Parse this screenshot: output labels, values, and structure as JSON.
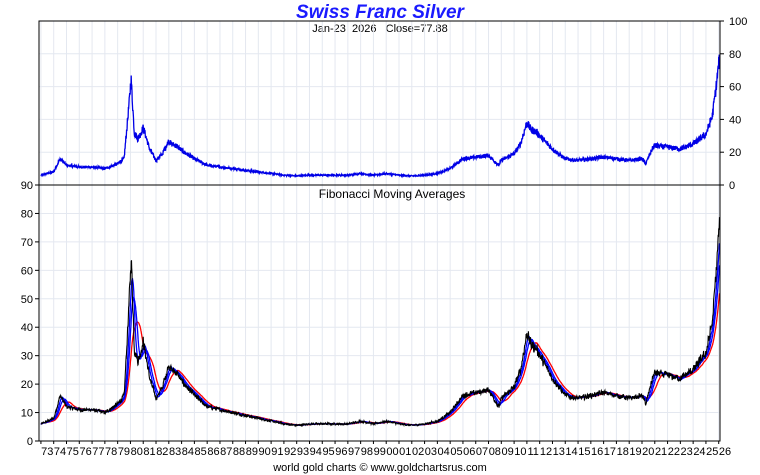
{
  "header": {
    "title": "Swiss Franc Silver",
    "date": "Jan-23",
    "year": "2026",
    "close": "Close=77.88"
  },
  "footer": {
    "credit": "world gold charts © www.goldchartsrus.com"
  },
  "colors": {
    "title": "#1a1aff",
    "price_line": "#0000e6",
    "fib_long": "#000000",
    "fib_mid": "#0000ff",
    "fib_short": "#ff0000",
    "grid": "#e4e8f0"
  },
  "chart_data": [
    {
      "type": "line",
      "panel": "top",
      "title": "Swiss Franc Silver",
      "subtitle": "Jan-23  2026   Close=77.88",
      "y_scale": "linear",
      "ylim": [
        0,
        100
      ],
      "y_ticks": [
        0,
        20,
        40,
        60,
        80,
        100
      ],
      "y_axis_side": "right",
      "grid": true,
      "series": [
        {
          "x": [
            1973,
            1974,
            1974.5,
            1975,
            1976,
            1977,
            1978,
            1979,
            1979.5,
            1979.9,
            1980.05,
            1980.3,
            1980.6,
            1981,
            1981.5,
            1982,
            1982.5,
            1983,
            1983.2,
            1983.6,
            1984,
            1985,
            1986,
            1987,
            1988,
            1989,
            1990,
            1991,
            1992,
            1993,
            1994,
            1995,
            1996,
            1997,
            1998,
            1999,
            2000,
            2001,
            2002,
            2003,
            2004,
            2005,
            2006,
            2007,
            2008,
            2008.8,
            2009,
            2010,
            2010.5,
            2011,
            2011.3,
            2011.8,
            2012,
            2013,
            2014,
            2015,
            2016,
            2017,
            2018,
            2019,
            2020,
            2020.3,
            2020.8,
            2021,
            2022,
            2023,
            2024,
            2024.5,
            2025,
            2025.5,
            2025.8,
            2026.06
          ],
          "y": [
            6,
            8,
            16,
            12,
            11,
            11,
            10,
            13,
            16,
            50,
            65,
            32,
            28,
            35,
            22,
            15,
            19,
            27,
            25,
            24,
            21,
            16,
            12,
            11,
            10,
            9,
            8,
            7,
            6,
            5.5,
            6,
            6,
            6,
            6,
            7,
            6,
            7,
            6,
            5.5,
            6,
            7,
            10,
            16,
            17,
            18,
            12,
            15,
            19,
            25,
            38,
            34,
            32,
            30,
            22,
            16,
            15,
            16,
            17,
            16,
            15,
            16,
            13,
            22,
            24,
            23,
            22,
            25,
            28,
            31,
            42,
            60,
            77.88
          ]
        }
      ]
    },
    {
      "type": "line",
      "panel": "bottom",
      "title": "Fibonacci Moving Averages",
      "y_scale": "linear",
      "ylim": [
        0,
        90
      ],
      "y_ticks": [
        0,
        10,
        20,
        30,
        40,
        50,
        60,
        70,
        80,
        90
      ],
      "x_tick_labels": [
        "73",
        "74",
        "75",
        "76",
        "77",
        "78",
        "79",
        "80",
        "81",
        "82",
        "83",
        "84",
        "85",
        "86",
        "87",
        "88",
        "89",
        "90",
        "91",
        "92",
        "93",
        "94",
        "95",
        "96",
        "97",
        "98",
        "99",
        "00",
        "01",
        "02",
        "03",
        "04",
        "05",
        "06",
        "07",
        "08",
        "09",
        "10",
        "11",
        "12",
        "13",
        "14",
        "15",
        "16",
        "17",
        "18",
        "19",
        "20",
        "21",
        "22",
        "23",
        "24",
        "25",
        "26"
      ],
      "grid": true,
      "source_series": {
        "x": [
          1973,
          1974,
          1974.5,
          1975,
          1976,
          1977,
          1978,
          1979,
          1979.5,
          1979.9,
          1980.05,
          1980.3,
          1980.6,
          1981,
          1981.5,
          1982,
          1982.5,
          1983,
          1983.2,
          1983.6,
          1984,
          1985,
          1986,
          1987,
          1988,
          1989,
          1990,
          1991,
          1992,
          1993,
          1994,
          1995,
          1996,
          1997,
          1998,
          1999,
          2000,
          2001,
          2002,
          2003,
          2004,
          2005,
          2006,
          2007,
          2008,
          2008.8,
          2009,
          2010,
          2010.5,
          2011,
          2011.3,
          2011.8,
          2012,
          2013,
          2014,
          2015,
          2016,
          2017,
          2018,
          2019,
          2020,
          2020.3,
          2020.8,
          2021,
          2022,
          2023,
          2024,
          2024.5,
          2025,
          2025.5,
          2025.8,
          2026.06
        ],
        "y": [
          6,
          8,
          16,
          12,
          11,
          11,
          10,
          13,
          16,
          50,
          65,
          32,
          28,
          35,
          22,
          15,
          19,
          27,
          25,
          24,
          21,
          16,
          12,
          11,
          10,
          9,
          8,
          7,
          6,
          5.5,
          6,
          6,
          6,
          6,
          7,
          6,
          7,
          6,
          5.5,
          6,
          7,
          10,
          16,
          17,
          18,
          12,
          15,
          19,
          25,
          38,
          34,
          32,
          30,
          22,
          16,
          15,
          16,
          17,
          16,
          15,
          16,
          13,
          22,
          24,
          23,
          22,
          25,
          28,
          31,
          42,
          60,
          77.88
        ]
      },
      "moving_average_lags_years": [
        0,
        0.25,
        0.5,
        0.9
      ]
    }
  ]
}
